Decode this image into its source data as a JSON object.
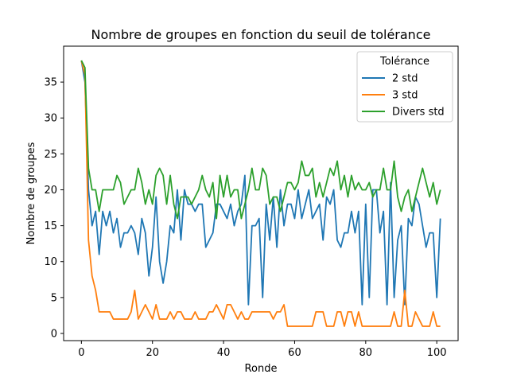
{
  "chart_data": {
    "type": "line",
    "title": "Nombre de groupes en fonction du seuil de tolérance",
    "xlabel": "Ronde",
    "ylabel": "Nombre de groupes",
    "xlim": [
      -5,
      106
    ],
    "ylim": [
      -1,
      40
    ],
    "x_ticks": [
      0,
      20,
      40,
      60,
      80,
      100
    ],
    "y_ticks": [
      0,
      5,
      10,
      15,
      20,
      25,
      30,
      35
    ],
    "grid": false,
    "legend": {
      "title": "Tolérance",
      "position": "top-right"
    },
    "x_start": 0,
    "series": [
      {
        "name": "2 std",
        "color": "#1f77b4",
        "values": [
          38,
          35,
          20,
          15,
          17,
          11,
          17,
          15,
          17,
          14,
          16,
          12,
          14,
          14,
          15,
          14,
          11,
          16,
          14,
          8,
          12,
          19,
          10,
          7,
          10,
          15,
          14,
          20,
          13,
          20,
          18,
          18,
          17,
          18,
          18,
          12,
          13,
          14,
          18,
          18,
          17,
          16,
          18,
          15,
          17,
          18,
          22,
          4,
          15,
          15,
          16,
          5,
          18,
          13,
          19,
          12,
          20,
          15,
          18,
          18,
          16,
          20,
          16,
          18,
          20,
          16,
          17,
          18,
          13,
          19,
          18,
          20,
          13,
          12,
          14,
          14,
          17,
          14,
          17,
          4,
          18,
          5,
          20,
          20,
          14,
          17,
          4,
          21,
          5,
          13,
          15,
          4,
          16,
          15,
          19,
          18,
          15,
          12,
          14,
          14,
          5,
          16
        ]
      },
      {
        "name": "3 std",
        "color": "#ff7f0e",
        "values": [
          38,
          36,
          13,
          8,
          6,
          3,
          3,
          3,
          3,
          2,
          2,
          2,
          2,
          2,
          3,
          6,
          2,
          3,
          4,
          3,
          2,
          4,
          2,
          2,
          2,
          3,
          2,
          3,
          3,
          2,
          2,
          2,
          3,
          2,
          2,
          2,
          3,
          3,
          4,
          3,
          2,
          4,
          4,
          3,
          2,
          3,
          2,
          2,
          3,
          3,
          3,
          3,
          3,
          3,
          2,
          3,
          3,
          4,
          1,
          1,
          1,
          1,
          1,
          1,
          1,
          1,
          3,
          3,
          3,
          1,
          1,
          1,
          3,
          3,
          1,
          3,
          3,
          1,
          3,
          1,
          1,
          1,
          1,
          1,
          1,
          1,
          1,
          1,
          3,
          1,
          1,
          6,
          1,
          1,
          3,
          2,
          1,
          1,
          1,
          3,
          1,
          1
        ]
      },
      {
        "name": "Divers std",
        "color": "#2ca02c",
        "values": [
          38,
          37,
          23,
          20,
          20,
          17,
          20,
          20,
          20,
          20,
          22,
          21,
          18,
          19,
          20,
          20,
          23,
          21,
          18,
          20,
          18,
          22,
          23,
          22,
          18,
          22,
          18,
          16,
          19,
          19,
          19,
          18,
          19,
          20,
          22,
          20,
          19,
          21,
          16,
          22,
          19,
          22,
          19,
          20,
          20,
          16,
          18,
          20,
          23,
          20,
          20,
          23,
          22,
          18,
          19,
          19,
          17,
          19,
          21,
          21,
          20,
          21,
          24,
          22,
          22,
          23,
          19,
          21,
          19,
          21,
          23,
          22,
          24,
          20,
          22,
          19,
          22,
          20,
          21,
          20,
          20,
          21,
          19,
          20,
          20,
          23,
          20,
          20,
          24,
          19,
          17,
          19,
          20,
          17,
          19,
          21,
          23,
          21,
          19,
          21,
          18,
          20
        ]
      }
    ]
  }
}
